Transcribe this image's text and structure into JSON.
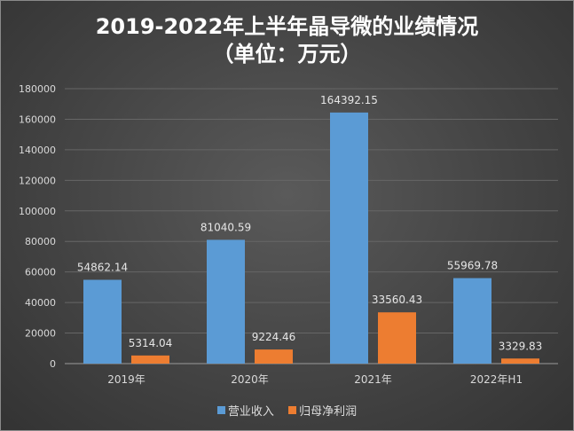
{
  "title": {
    "line1": "2019-2022年上半年晶导微的业绩情况",
    "line2": "（单位：万元）"
  },
  "chart_data": {
    "type": "bar",
    "categories": [
      "2019年",
      "2020年",
      "2021年",
      "2022年H1"
    ],
    "series": [
      {
        "name": "营业收入",
        "values": [
          54862.14,
          81040.59,
          164392.15,
          55969.78
        ],
        "color": "#5b9bd5",
        "labels": [
          "54862.14",
          "81040.59",
          "164392.15",
          "55969.78"
        ]
      },
      {
        "name": "归母净利润",
        "values": [
          5314.04,
          9224.46,
          33560.43,
          3329.83
        ],
        "color": "#ed7d31",
        "labels": [
          "5314.04",
          "9224.46",
          "33560.43",
          "3329.83"
        ]
      }
    ],
    "yticks": [
      "0",
      "20000",
      "40000",
      "60000",
      "80000",
      "100000",
      "120000",
      "140000",
      "160000",
      "180000"
    ],
    "ylim": [
      0,
      180000
    ],
    "grid": true,
    "legend_position": "bottom"
  }
}
